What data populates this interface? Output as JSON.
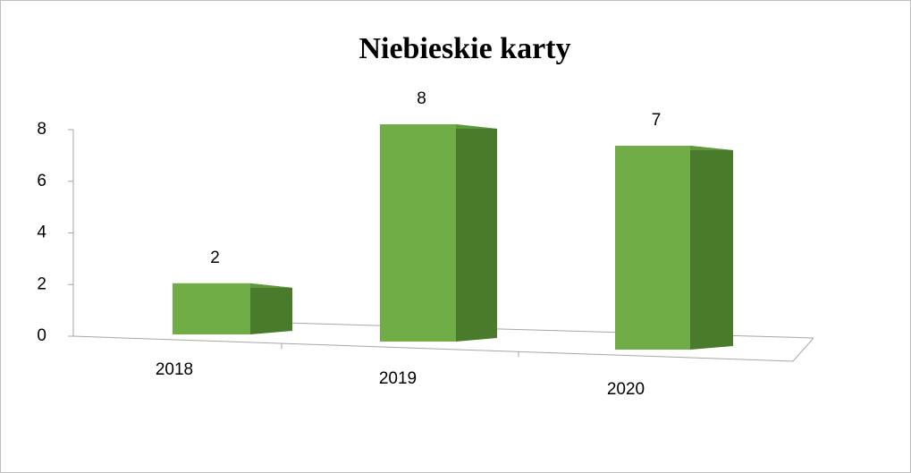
{
  "chart_data": {
    "type": "bar3d",
    "title": "Niebieskie karty",
    "categories": [
      "2018",
      "2019",
      "2020"
    ],
    "values": [
      2,
      8,
      7
    ],
    "color": "#70ad47",
    "ylim": [
      0,
      8
    ],
    "yticks": [
      0,
      2,
      4,
      6,
      8
    ],
    "grid": false
  }
}
